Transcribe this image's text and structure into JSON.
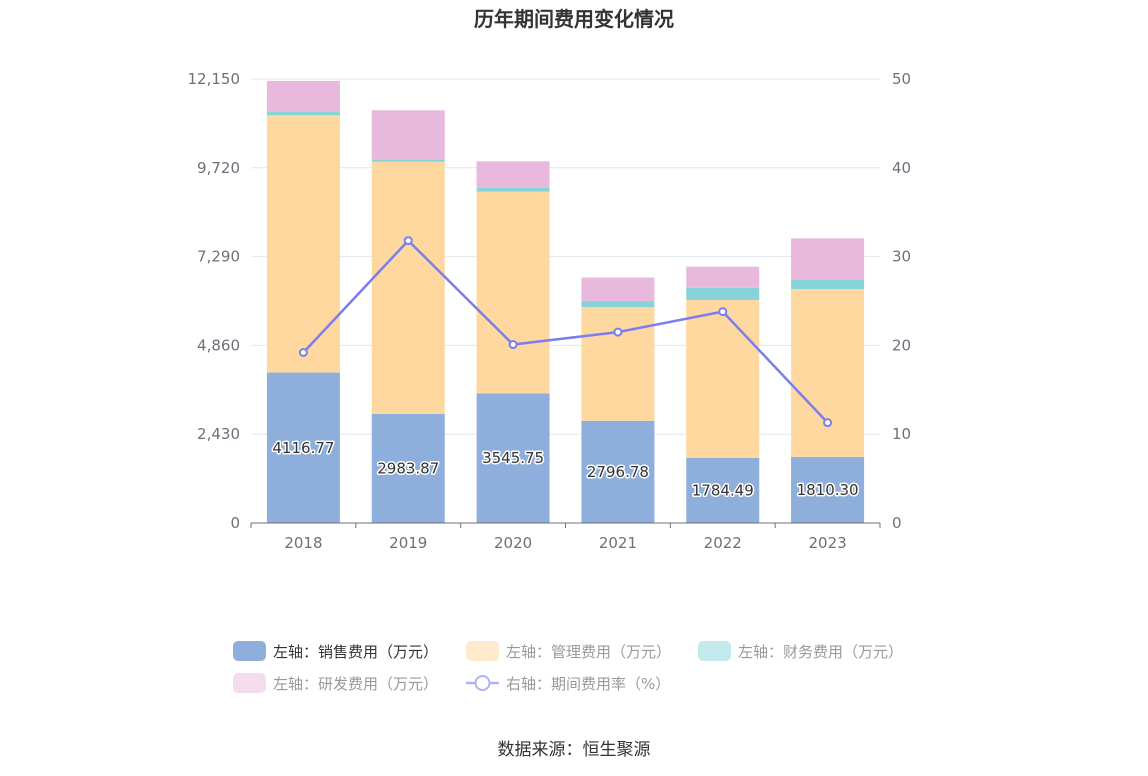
{
  "chart_data": {
    "type": "bar",
    "stacked": true,
    "title": "历年期间费用变化情况",
    "categories": [
      "2018",
      "2019",
      "2020",
      "2021",
      "2022",
      "2023"
    ],
    "y_left": {
      "ticks": [
        "0",
        "2,430",
        "4,860",
        "7,290",
        "9,720",
        "12,150"
      ],
      "range": [
        0,
        12150
      ]
    },
    "y_right": {
      "ticks": [
        "0",
        "10",
        "20",
        "30",
        "40",
        "50"
      ],
      "range": [
        0,
        50
      ]
    },
    "series": [
      {
        "name": "左轴：销售费用（万元）",
        "axis": "left",
        "color": "#8eaedb",
        "values": [
          4116.77,
          2983.87,
          3545.75,
          2796.78,
          1784.49,
          1810.3
        ],
        "labels": [
          "4116.77",
          "2983.87",
          "3545.75",
          "2796.78",
          "1784.49",
          "1810.30"
        ]
      },
      {
        "name": "左轴：管理费用（万元）",
        "axis": "left",
        "color": "#fed89e",
        "values": [
          7040,
          6900,
          5520,
          3110,
          4320,
          4590
        ]
      },
      {
        "name": "左轴：财务费用（万元）",
        "axis": "left",
        "color": "#86d4da",
        "values": [
          90,
          60,
          110,
          170,
          330,
          250
        ]
      },
      {
        "name": "左轴：研发费用（万元）",
        "axis": "left",
        "color": "#e8b9dd",
        "values": [
          850,
          1350,
          720,
          640,
          580,
          1140
        ]
      },
      {
        "name": "右轴：期间费用率（%）",
        "axis": "right",
        "type": "line",
        "color": "#7b7ef0",
        "values": [
          19.2,
          31.8,
          20.1,
          21.5,
          23.8,
          11.3
        ]
      }
    ],
    "legend_position": "bottom",
    "grid": true
  },
  "source": "数据来源：恒生聚源"
}
